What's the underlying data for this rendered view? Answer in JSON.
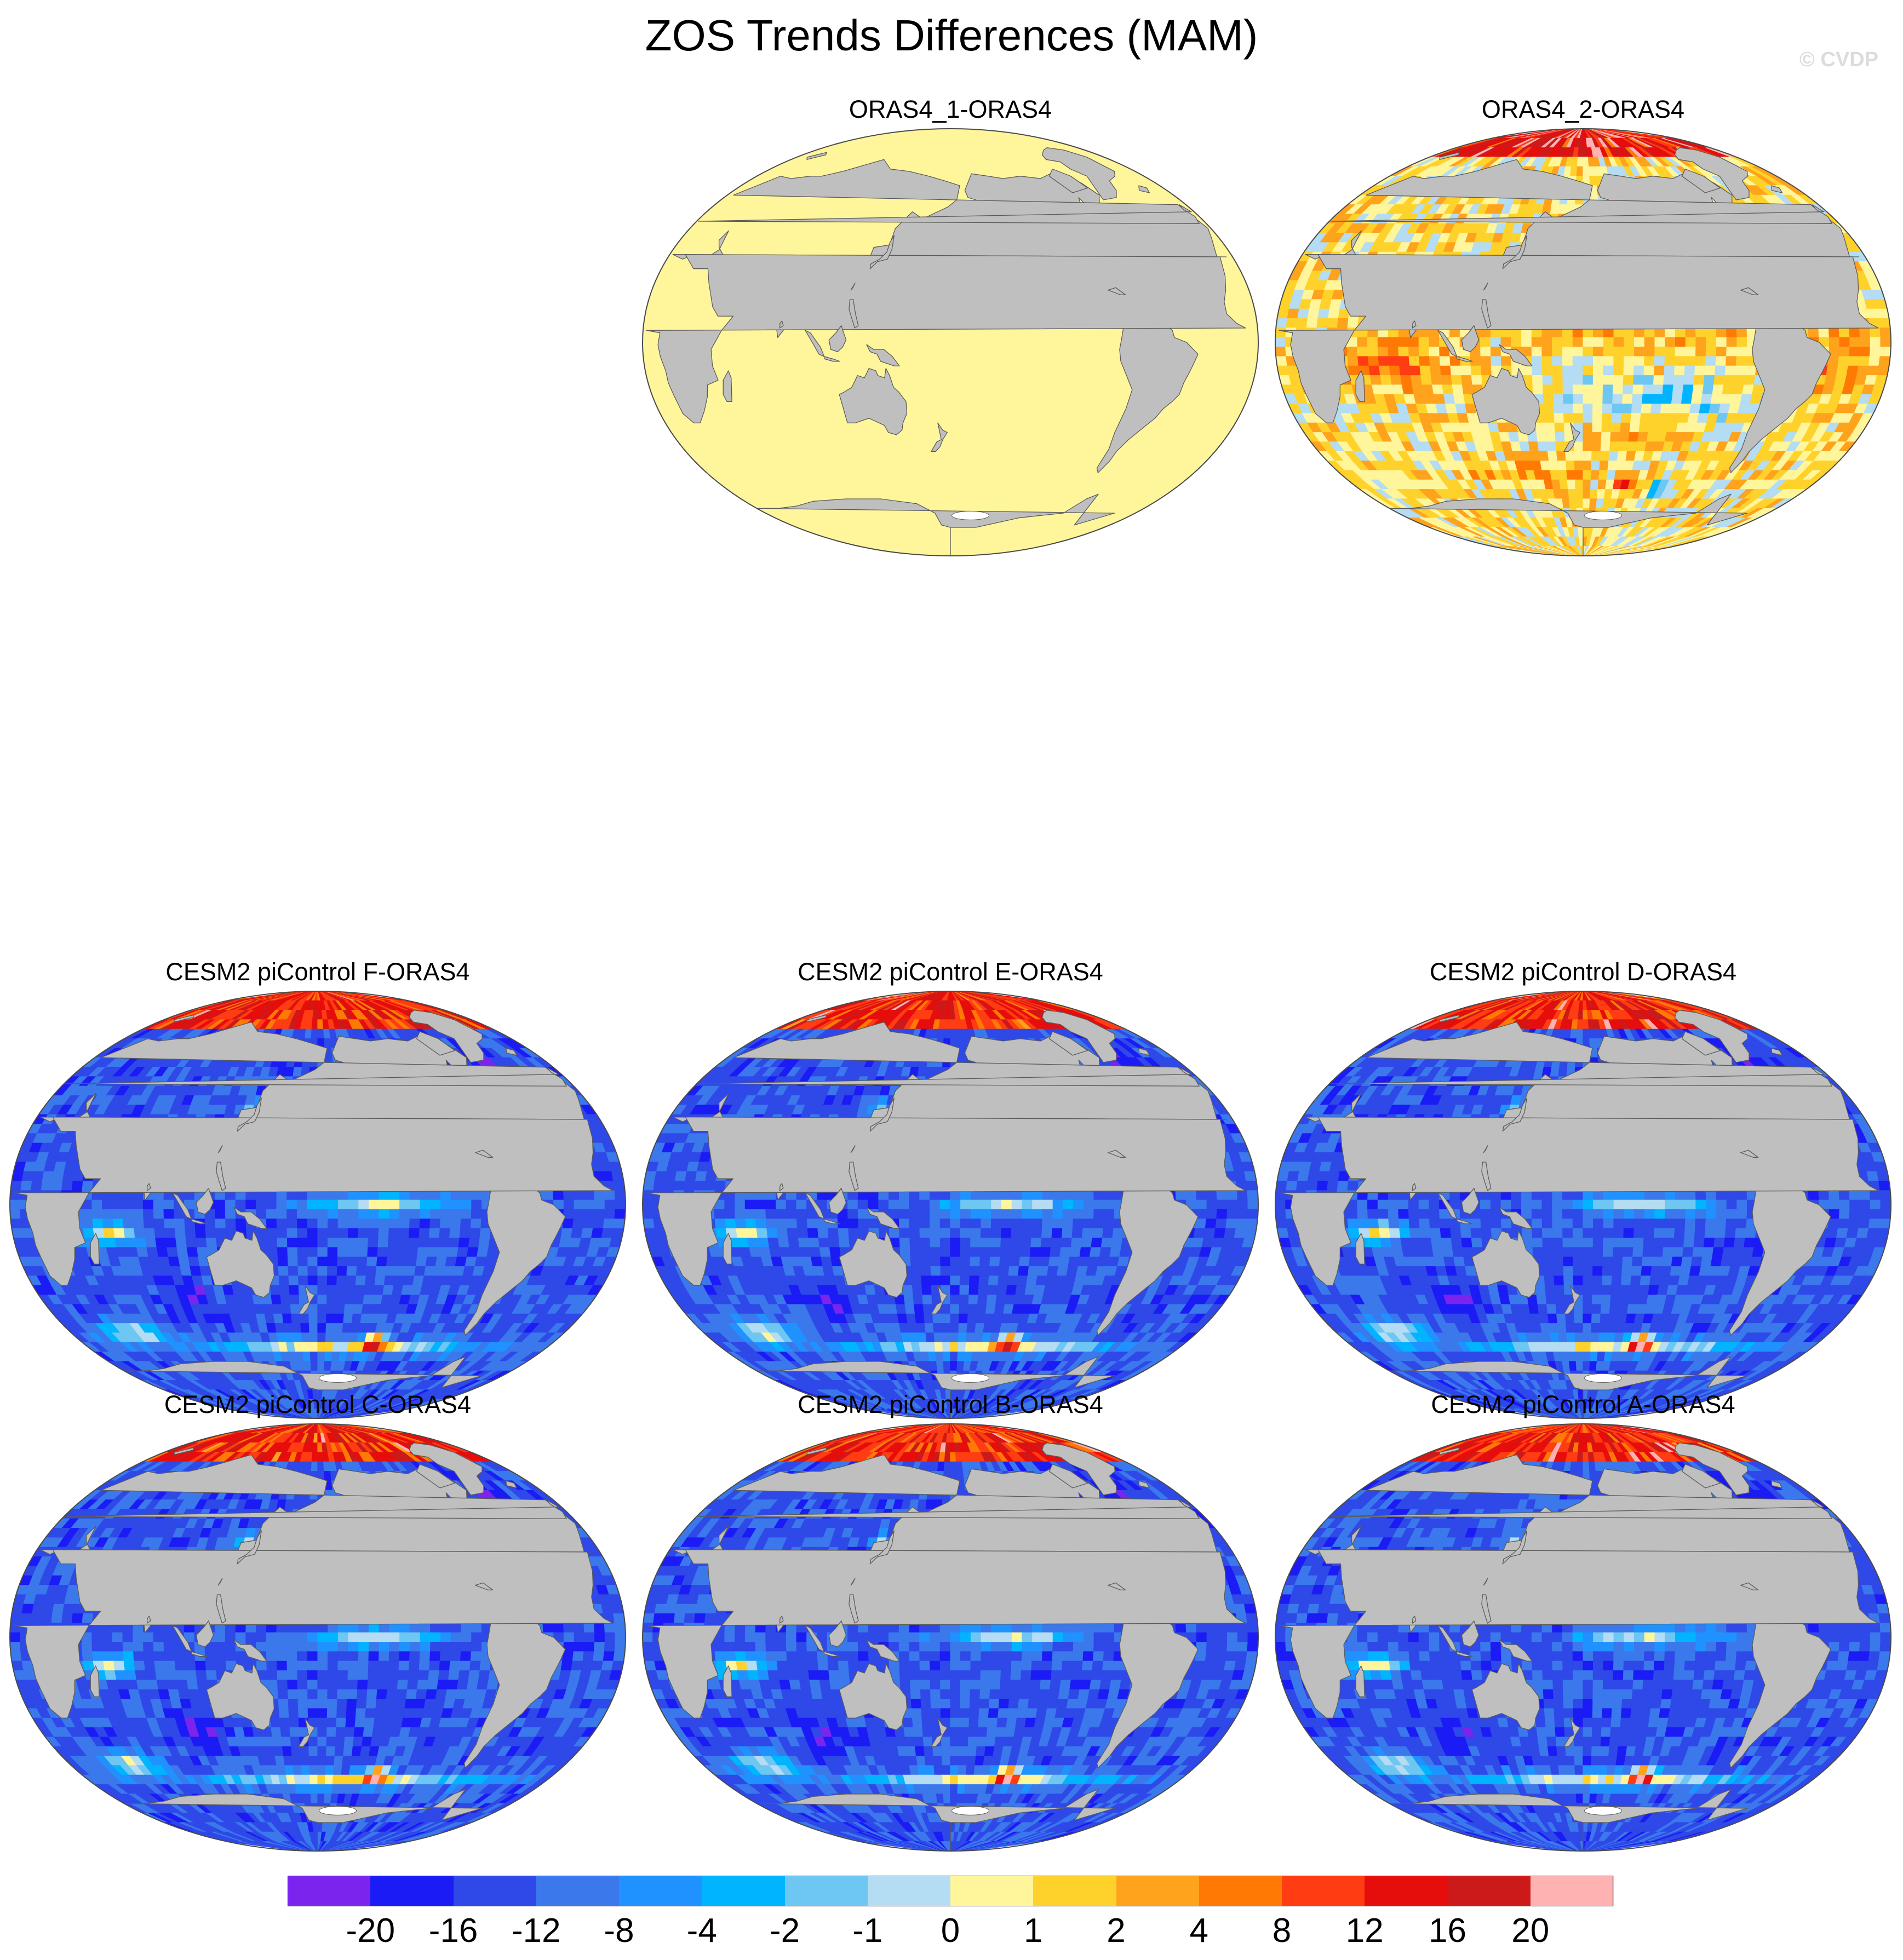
{
  "title": "ZOS Trends Differences (MAM)",
  "copyright": "© CVDP",
  "panels": [
    {
      "id": "oras4_1",
      "title": "ORAS4_1-ORAS4",
      "pattern": "uniform",
      "uniform_level": 8
    },
    {
      "id": "oras4_2",
      "title": "ORAS4_2-ORAS4",
      "pattern": "reanalysis",
      "uniform_level": null
    },
    {
      "id": "cesm_f",
      "title": "CESM2 piControl F-ORAS4",
      "pattern": "model",
      "uniform_level": null
    },
    {
      "id": "cesm_e",
      "title": "CESM2 piControl E-ORAS4",
      "pattern": "model",
      "uniform_level": null
    },
    {
      "id": "cesm_d",
      "title": "CESM2 piControl D-ORAS4",
      "pattern": "model",
      "uniform_level": null
    },
    {
      "id": "cesm_c",
      "title": "CESM2 piControl C-ORAS4",
      "pattern": "model",
      "uniform_level": null
    },
    {
      "id": "cesm_b",
      "title": "CESM2 piControl B-ORAS4",
      "pattern": "model",
      "uniform_level": null
    },
    {
      "id": "cesm_a",
      "title": "CESM2 piControl A-ORAS4",
      "pattern": "model",
      "uniform_level": null
    }
  ],
  "colorbar": {
    "labels": [
      "-20",
      "-16",
      "-12",
      "-8",
      "-4",
      "-2",
      "-1",
      "0",
      "1",
      "2",
      "4",
      "8",
      "12",
      "16",
      "20"
    ],
    "colors": [
      "#7b24ee",
      "#1b1bf5",
      "#2f48e8",
      "#3a78ec",
      "#1f92ff",
      "#00b4ff",
      "#6ec6f2",
      "#b4dcf2",
      "#fff59b",
      "#ffd22b",
      "#ffa21c",
      "#ff7a05",
      "#ff3c12",
      "#e60d0d",
      "#cc1a1a",
      "#ffb2b2"
    ]
  },
  "map_colors": {
    "land": "#bfbfbf",
    "coast": "#5a5a5a",
    "outline": "#4a4a4a",
    "ice": "#ffffff"
  }
}
